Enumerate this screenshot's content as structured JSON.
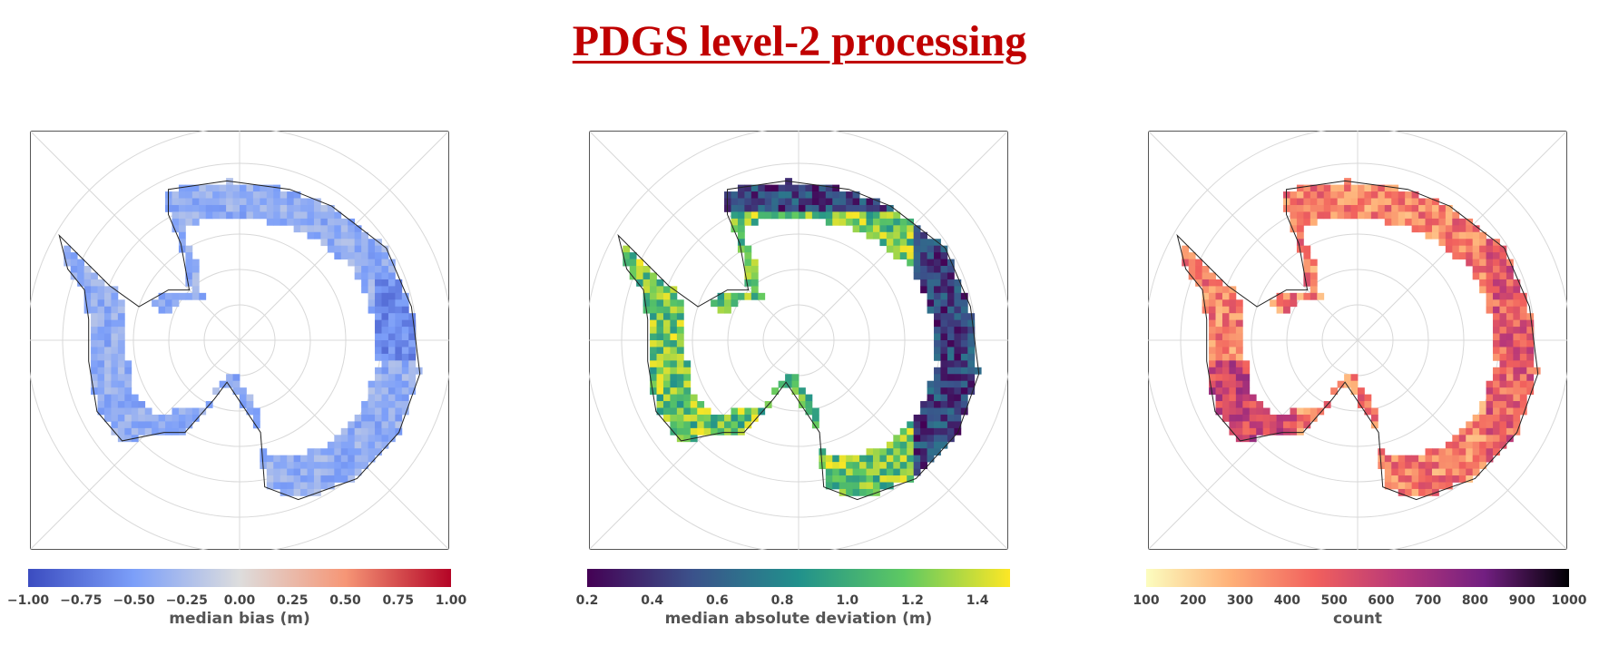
{
  "title": "PDGS level-2 processing",
  "chart_data": [
    {
      "type": "heatmap",
      "description_of_field": "polar stereographic map of Antarctica, coastal ring of grid cells",
      "colormap": "coolwarm",
      "vmin": -1.0,
      "vmax": 1.0,
      "colorbar_ticks": [
        "−1.00",
        "−0.75",
        "−0.50",
        "−0.25",
        "0.00",
        "0.25",
        "0.50",
        "0.75",
        "1.00"
      ],
      "colorbar_label": "median bias (m)"
    },
    {
      "type": "heatmap",
      "colormap": "viridis",
      "vmin": 0.2,
      "vmax": 1.5,
      "colorbar_ticks": [
        "0.2",
        "0.4",
        "0.6",
        "0.8",
        "1.0",
        "1.2",
        "1.4"
      ],
      "colorbar_label": "median absolute deviation (m)"
    },
    {
      "type": "heatmap",
      "colormap": "magma_r",
      "vmin": 100,
      "vmax": 1000,
      "colorbar_ticks": [
        "100",
        "200",
        "300",
        "400",
        "500",
        "600",
        "700",
        "800",
        "900",
        "1000"
      ],
      "colorbar_label": "count"
    }
  ]
}
